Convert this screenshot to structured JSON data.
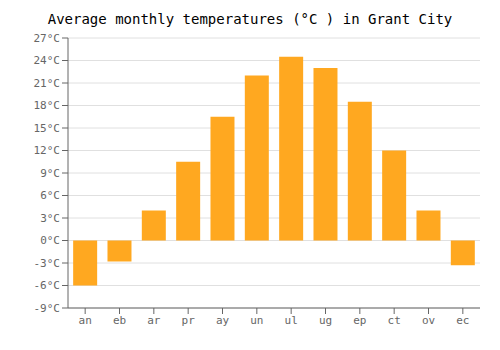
{
  "chart_data": {
    "type": "bar",
    "title": "Average monthly temperatures (°C ) in Grant City",
    "categories": [
      "an",
      "eb",
      "ar",
      "pr",
      "ay",
      "un",
      "ul",
      "ug",
      "ep",
      "ct",
      "ov",
      "ec"
    ],
    "values": [
      -6.0,
      -2.8,
      4.0,
      10.5,
      16.5,
      22.0,
      24.5,
      23.0,
      18.5,
      12.0,
      4.0,
      -3.3
    ],
    "color": "#FFA820",
    "ylim": [
      -9,
      27
    ],
    "yticks": [
      {
        "value": -9,
        "label": "-9°C"
      },
      {
        "value": -6,
        "label": "-6°C"
      },
      {
        "value": -3,
        "label": "-3°C"
      },
      {
        "value": 0,
        "label": "0°C"
      },
      {
        "value": 3,
        "label": "3°C"
      },
      {
        "value": 6,
        "label": "6°C"
      },
      {
        "value": 9,
        "label": "9°C"
      },
      {
        "value": 12,
        "label": "12°C"
      },
      {
        "value": 15,
        "label": "15°C"
      },
      {
        "value": 18,
        "label": "18°C"
      },
      {
        "value": 21,
        "label": "21°C"
      },
      {
        "value": 24,
        "label": "24°C"
      },
      {
        "value": 27,
        "label": "27°C"
      }
    ],
    "grid": true
  }
}
